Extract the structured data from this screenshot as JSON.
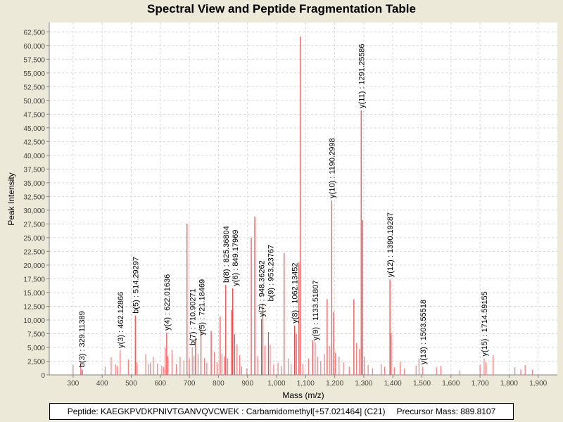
{
  "chart_data": {
    "type": "bar",
    "title": "Spectral View and Peptide Fragmentation Table",
    "xlabel": "Mass (m/z)",
    "ylabel": "Peak Intensity",
    "xlim": [
      218,
      1966
    ],
    "ylim": [
      0,
      64200
    ],
    "grid": true,
    "x_ticks": [
      300,
      400,
      500,
      600,
      700,
      800,
      900,
      1000,
      1100,
      1200,
      1300,
      1400,
      1500,
      1600,
      1700,
      1800,
      1900
    ],
    "x_tick_labels": [
      "300",
      "400",
      "500",
      "600",
      "700",
      "800",
      "900",
      "1,000",
      "1,100",
      "1,200",
      "1,300",
      "1,400",
      "1,500",
      "1,600",
      "1,700",
      "1,800",
      "1,900"
    ],
    "y_ticks": [
      0,
      2500,
      5000,
      7500,
      10000,
      12500,
      15000,
      17500,
      20000,
      22500,
      25000,
      27500,
      30000,
      32500,
      35000,
      37500,
      40000,
      42500,
      45000,
      47500,
      50000,
      52500,
      55000,
      57500,
      60000,
      62500
    ],
    "y_tick_labels": [
      "0",
      "2,500",
      "5,000",
      "7,500",
      "10,000",
      "12,500",
      "15,000",
      "17,500",
      "20,000",
      "22,500",
      "25,000",
      "27,500",
      "30,000",
      "32,500",
      "35,000",
      "37,500",
      "40,000",
      "42,500",
      "45,000",
      "47,500",
      "50,000",
      "52,500",
      "55,000",
      "57,500",
      "60,000",
      "62,500"
    ],
    "peak_color": "#ff4040",
    "peaks": [
      [
        300,
        1800
      ],
      [
        326,
        2300
      ],
      [
        329,
        1000
      ],
      [
        333,
        900
      ],
      [
        410,
        1500
      ],
      [
        431,
        3200
      ],
      [
        446,
        1900
      ],
      [
        452,
        1600
      ],
      [
        462,
        4500
      ],
      [
        490,
        2800
      ],
      [
        514,
        10800
      ],
      [
        520,
        2300
      ],
      [
        550,
        3800
      ],
      [
        560,
        2000
      ],
      [
        566,
        2200
      ],
      [
        576,
        3300
      ],
      [
        590,
        2100
      ],
      [
        605,
        1700
      ],
      [
        612,
        1400
      ],
      [
        617,
        5000
      ],
      [
        622,
        7700
      ],
      [
        626,
        3400
      ],
      [
        640,
        4500
      ],
      [
        655,
        2000
      ],
      [
        668,
        3300
      ],
      [
        681,
        2600
      ],
      [
        692,
        27560
      ],
      [
        700,
        3000
      ],
      [
        710,
        5000
      ],
      [
        716,
        3500
      ],
      [
        721,
        6800
      ],
      [
        730,
        3800
      ],
      [
        740,
        9100
      ],
      [
        752,
        3100
      ],
      [
        760,
        2200
      ],
      [
        775,
        8000
      ],
      [
        786,
        4200
      ],
      [
        795,
        2300
      ],
      [
        806,
        10600
      ],
      [
        812,
        3800
      ],
      [
        820,
        3400
      ],
      [
        825,
        16400
      ],
      [
        832,
        3000
      ],
      [
        849,
        15800
      ],
      [
        845,
        11800
      ],
      [
        856,
        7400
      ],
      [
        864,
        5600
      ],
      [
        873,
        3600
      ],
      [
        880,
        1500
      ],
      [
        898,
        1200
      ],
      [
        913,
        25000
      ],
      [
        925,
        28850
      ],
      [
        935,
        3400
      ],
      [
        948,
        10200
      ],
      [
        953,
        13000
      ],
      [
        960,
        5300
      ],
      [
        972,
        7800
      ],
      [
        978,
        5500
      ],
      [
        990,
        1900
      ],
      [
        1005,
        2200
      ],
      [
        1016,
        1600
      ],
      [
        1026,
        22200
      ],
      [
        1040,
        3000
      ],
      [
        1050,
        2000
      ],
      [
        1062,
        9000
      ],
      [
        1068,
        7500
      ],
      [
        1077,
        20500
      ],
      [
        1082,
        61650
      ],
      [
        1090,
        2000
      ],
      [
        1110,
        3000
      ],
      [
        1124,
        6300
      ],
      [
        1133,
        5900
      ],
      [
        1142,
        3300
      ],
      [
        1152,
        2500
      ],
      [
        1165,
        3800
      ],
      [
        1174,
        13800
      ],
      [
        1182,
        5300
      ],
      [
        1190,
        31800
      ],
      [
        1196,
        11500
      ],
      [
        1202,
        4000
      ],
      [
        1215,
        3300
      ],
      [
        1230,
        2300
      ],
      [
        1250,
        1500
      ],
      [
        1266,
        13800
      ],
      [
        1275,
        5800
      ],
      [
        1285,
        4700
      ],
      [
        1291,
        48200
      ],
      [
        1296,
        28200
      ],
      [
        1302,
        3300
      ],
      [
        1315,
        1800
      ],
      [
        1330,
        1200
      ],
      [
        1360,
        2000
      ],
      [
        1372,
        1500
      ],
      [
        1390,
        17400
      ],
      [
        1394,
        7600
      ],
      [
        1405,
        1400
      ],
      [
        1425,
        2400
      ],
      [
        1440,
        1200
      ],
      [
        1480,
        1700
      ],
      [
        1490,
        3000
      ],
      [
        1503,
        1500
      ],
      [
        1550,
        1400
      ],
      [
        1565,
        1600
      ],
      [
        1630,
        800
      ],
      [
        1700,
        1800
      ],
      [
        1714,
        3000
      ],
      [
        1720,
        2300
      ],
      [
        1745,
        3600
      ],
      [
        1820,
        1400
      ],
      [
        1840,
        1000
      ],
      [
        1855,
        1800
      ],
      [
        1880,
        900
      ]
    ],
    "annotations": [
      {
        "label": "b(3) : 329.11389",
        "mass": 329.11,
        "intensity": 1000
      },
      {
        "label": "y(3) : 462.12866",
        "mass": 462.13,
        "intensity": 4500
      },
      {
        "label": "b(5) : 514.29297",
        "mass": 514.29,
        "intensity": 10800
      },
      {
        "label": "y(4) : 622.01636",
        "mass": 622.02,
        "intensity": 7700
      },
      {
        "label": "b(7) : 710.90271",
        "mass": 710.9,
        "intensity": 5000
      },
      {
        "label": "y(5) : 721.18469",
        "mass": 721.18,
        "intensity": 6800
      },
      {
        "label": "b(8) : 825.36804",
        "mass": 825.37,
        "intensity": 16400
      },
      {
        "label": "y(6) : 849.17969",
        "mass": 849.18,
        "intensity": 15800
      },
      {
        "label": "y(7) : 948.36262",
        "mass": 948.36,
        "intensity": 10200
      },
      {
        "label": "b(9) : 953.23767",
        "mass": 953.24,
        "intensity": 13000
      },
      {
        "label": "y(8) : 1062.13452",
        "mass": 1062.13,
        "intensity": 9000
      },
      {
        "label": "y(9) : 1133.51807",
        "mass": 1133.52,
        "intensity": 5900
      },
      {
        "label": "y(10) : 1190.2998",
        "mass": 1190.3,
        "intensity": 31800
      },
      {
        "label": "y(11) : 1291.25586",
        "mass": 1291.26,
        "intensity": 48200
      },
      {
        "label": "y(12) : 1390.19287",
        "mass": 1390.19,
        "intensity": 17400
      },
      {
        "label": "y(13) : 1503.55518",
        "mass": 1503.56,
        "intensity": 1500
      },
      {
        "label": "y(15) : 1714.59155",
        "mass": 1714.59,
        "intensity": 3000
      }
    ]
  },
  "legend": {
    "peptide": "Peptide: KAEGKPVDKPNIVTGANVQVCWEK : Carbamidomethyl[+57.021464] (C21)",
    "precursor": "Precursor Mass: 889.8107"
  }
}
